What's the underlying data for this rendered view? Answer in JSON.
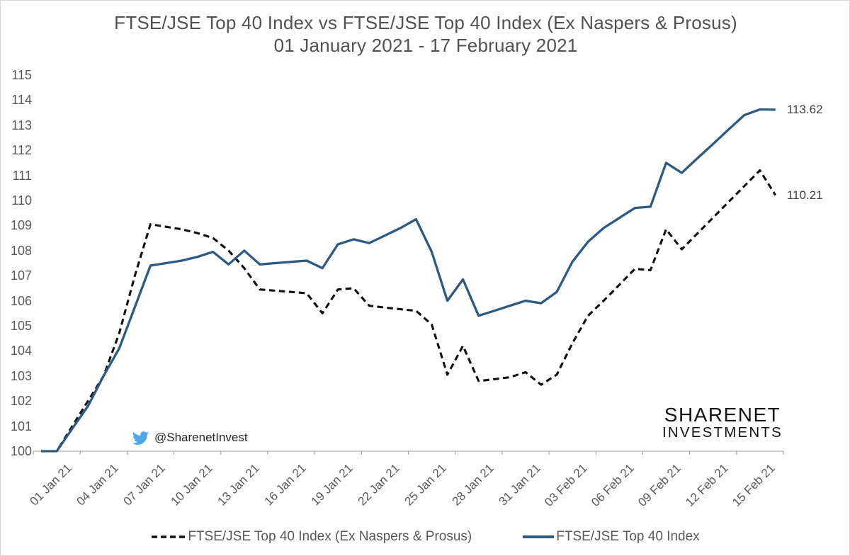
{
  "title": "FTSE/JSE Top 40 Index vs FTSE/JSE Top 40 Index (Ex Naspers & Prosus)",
  "subtitle": "01 January 2021 - 17 February 2021",
  "watermark": {
    "icon": "twitter-bird-icon",
    "handle": "@SharenetInvest",
    "icon_color": "#4da7e8"
  },
  "logo": {
    "line1": "SHARENET",
    "line2": "INVESTMENTS"
  },
  "chart_data": {
    "type": "line",
    "title": "FTSE/JSE Top 40 Index vs FTSE/JSE Top 40 Index (Ex Naspers & Prosus)",
    "subtitle": "01 January 2021 - 17 February 2021",
    "grid": false,
    "legend_position": "bottom",
    "ylim": [
      100,
      115
    ],
    "y_ticks": [
      100,
      101,
      102,
      103,
      104,
      105,
      106,
      107,
      108,
      109,
      110,
      111,
      112,
      113,
      114,
      115
    ],
    "x_tick_labels": [
      "01 Jan 21",
      "04 Jan 21",
      "07 Jan 21",
      "10 Jan 21",
      "13 Jan 21",
      "16 Jan 21",
      "19 Jan 21",
      "22 Jan 21",
      "25 Jan 21",
      "28 Jan 21",
      "31 Jan 21",
      "03 Feb 21",
      "06 Feb 21",
      "09 Feb 21",
      "12 Feb 21",
      "15 Feb 21"
    ],
    "x_dates": [
      "01 Jan 21",
      "02 Jan 21",
      "03 Jan 21",
      "04 Jan 21",
      "05 Jan 21",
      "06 Jan 21",
      "07 Jan 21",
      "08 Jan 21",
      "09 Jan 21",
      "10 Jan 21",
      "11 Jan 21",
      "12 Jan 21",
      "13 Jan 21",
      "14 Jan 21",
      "15 Jan 21",
      "16 Jan 21",
      "17 Jan 21",
      "18 Jan 21",
      "19 Jan 21",
      "20 Jan 21",
      "21 Jan 21",
      "22 Jan 21",
      "23 Jan 21",
      "24 Jan 21",
      "25 Jan 21",
      "26 Jan 21",
      "27 Jan 21",
      "28 Jan 21",
      "29 Jan 21",
      "30 Jan 21",
      "31 Jan 21",
      "01 Feb 21",
      "02 Feb 21",
      "03 Feb 21",
      "04 Feb 21",
      "05 Feb 21",
      "06 Feb 21",
      "07 Feb 21",
      "08 Feb 21",
      "09 Feb 21",
      "10 Feb 21",
      "11 Feb 21",
      "12 Feb 21",
      "13 Feb 21",
      "14 Feb 21",
      "15 Feb 21",
      "16 Feb 21",
      "17 Feb 21"
    ],
    "series": [
      {
        "name": "FTSE/JSE Top 40 Index (Ex Naspers & Prosus)",
        "style": "dashed",
        "color": "#111111",
        "end_label": "110.21",
        "values": [
          100,
          100,
          101.0,
          102.0,
          103.0,
          104.7,
          107.0,
          109.05,
          108.95,
          108.85,
          108.7,
          108.5,
          108.0,
          107.3,
          106.45,
          106.4,
          106.35,
          106.3,
          105.5,
          106.45,
          106.5,
          105.8,
          105.73,
          105.66,
          105.6,
          105.05,
          103.05,
          104.2,
          102.8,
          102.87,
          102.95,
          103.15,
          102.65,
          103.05,
          104.3,
          105.4,
          106.0,
          106.63,
          107.27,
          107.22,
          108.85,
          108.05,
          108.68,
          109.31,
          109.94,
          110.57,
          111.2,
          110.21
        ]
      },
      {
        "name": "FTSE/JSE Top 40 Index",
        "style": "solid",
        "color": "#2d5a82",
        "end_label": "113.62",
        "values": [
          100,
          100,
          100.9,
          101.8,
          103.0,
          104.1,
          105.75,
          107.4,
          107.5,
          107.6,
          107.75,
          107.95,
          107.45,
          108.0,
          107.45,
          107.5,
          107.55,
          107.6,
          107.3,
          108.25,
          108.45,
          108.3,
          108.6,
          108.9,
          109.25,
          107.95,
          106.0,
          106.85,
          105.4,
          105.6,
          105.8,
          106.0,
          105.9,
          106.35,
          107.55,
          108.35,
          108.9,
          109.3,
          109.7,
          109.75,
          111.5,
          111.1,
          111.68,
          112.25,
          112.83,
          113.4,
          113.63,
          113.62
        ]
      }
    ]
  }
}
